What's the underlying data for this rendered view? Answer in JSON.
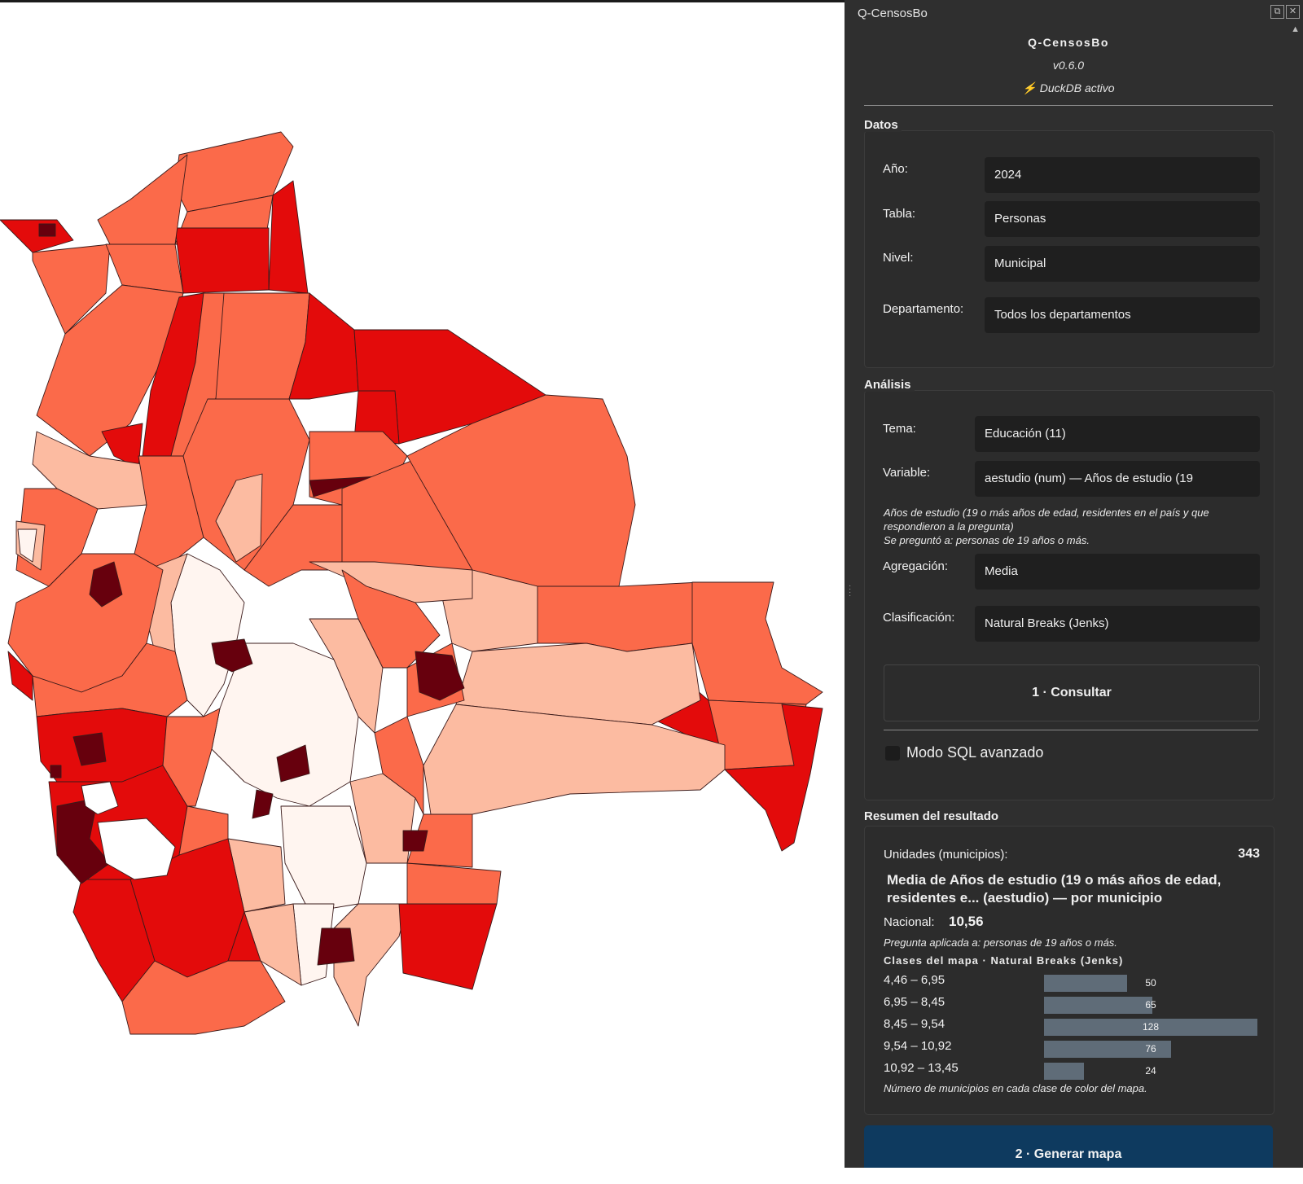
{
  "panel": {
    "title": "Q-CensosBo",
    "app_name": "Q-CensosBo",
    "version": "v0.6.0",
    "db_status": "⚡ DuckDB activo",
    "datos": {
      "group_label": "Datos",
      "fields": [
        {
          "label": "Año:",
          "value": "2024"
        },
        {
          "label": "Tabla:",
          "value": "Personas"
        },
        {
          "label": "Nivel:",
          "value": "Municipal"
        },
        {
          "label": "Departamento:",
          "value": "Todos los departamentos"
        }
      ]
    },
    "analisis": {
      "group_label": "Análisis",
      "tema": {
        "label": "Tema:",
        "value": "Educación (11)"
      },
      "variable": {
        "label": "Variable:",
        "value": "aestudio (num) — Años de estudio (19"
      },
      "description": "Años de estudio (19 o más años de edad, residentes en el país y que respondieron a la pregunta)",
      "asked_to": "Se preguntó a: personas de 19 años o más.",
      "agregacion": {
        "label": "Agregación:",
        "value": "Media"
      },
      "clasificacion": {
        "label": "Clasificación:",
        "value": "Natural Breaks (Jenks)"
      },
      "consultar_label": "1 · Consultar",
      "sql_mode_label": "Modo SQL avanzado",
      "sql_mode_checked": false
    },
    "resumen": {
      "group_label": "Resumen del resultado",
      "units_label": "Unidades (municipios):",
      "units_value": "343",
      "title": "Media de Años de estudio (19 o más años de edad, residentes e... (aestudio) — por municipio",
      "nacional_label": "Nacional:",
      "nacional_value": "10,56",
      "pregunta": "Pregunta aplicada a: personas de 19 años o más.",
      "classes_title": "Clases del mapa · Natural Breaks (Jenks)",
      "classes": [
        {
          "range": "4,46 – 6,95",
          "count": 50
        },
        {
          "range": "6,95 – 8,45",
          "count": 65
        },
        {
          "range": "8,45 – 9,54",
          "count": 128
        },
        {
          "range": "9,54 – 10,92",
          "count": 76
        },
        {
          "range": "10,92 – 13,45",
          "count": 24
        }
      ],
      "footnote": "Número de municipios en cada clase de color del mapa."
    },
    "generar_label": "2 · Generar mapa"
  },
  "map": {
    "class_colors": [
      "#fff5f0",
      "#fcbba1",
      "#fb6a4a",
      "#e30b0b",
      "#67000d"
    ]
  }
}
